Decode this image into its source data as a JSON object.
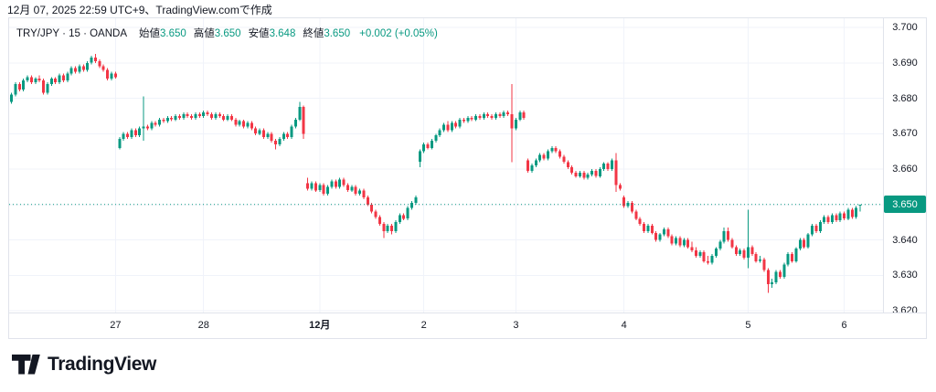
{
  "header": {
    "note": "12月 07, 2025 22:59 UTC+9、TradingView.comで作成"
  },
  "legend": {
    "symbol_title": "TRY/JPY · 15 · OANDA",
    "fields": [
      {
        "label": "始値",
        "value": "3.650"
      },
      {
        "label": "高値",
        "value": "3.650"
      },
      {
        "label": "安値",
        "value": "3.648"
      },
      {
        "label": "終値",
        "value": "3.650"
      }
    ],
    "change": "+0.002 (+0.05%)"
  },
  "footer": {
    "brand": "TradingView"
  },
  "colors": {
    "up": "#089981",
    "down": "#f23645",
    "grid": "#f0f3fa",
    "frame": "#e0e3eb",
    "text": "#131722",
    "badge_bg": "#089981",
    "badge_text": "#ffffff"
  },
  "chart_data": {
    "type": "candlestick",
    "symbol": "TRY/JPY",
    "interval": "15",
    "exchange": "OANDA",
    "last_ohlc": {
      "open": 3.65,
      "high": 3.65,
      "low": 3.648,
      "close": 3.65,
      "change": 0.002,
      "change_pct": 0.05
    },
    "current_price": 3.65,
    "current_price_label": "3.650",
    "grid": true,
    "y_axis": {
      "min": 3.62,
      "max": 3.7,
      "tick_step": 0.01,
      "labels": [
        "3.700",
        "3.690",
        "3.680",
        "3.670",
        "3.660",
        "3.650",
        "3.640",
        "3.630",
        "3.620"
      ]
    },
    "x_axis": {
      "ticks": [
        {
          "label": "27",
          "slot": 26,
          "bold": false
        },
        {
          "label": "28",
          "slot": 48,
          "bold": false
        },
        {
          "label": "12月",
          "slot": 77,
          "bold": true
        },
        {
          "label": "2",
          "slot": 103,
          "bold": false
        },
        {
          "label": "3",
          "slot": 126,
          "bold": false
        },
        {
          "label": "4",
          "slot": 153,
          "bold": false
        },
        {
          "label": "5",
          "slot": 184,
          "bold": false
        },
        {
          "label": "6",
          "slot": 208,
          "bold": false
        }
      ]
    },
    "candles": [
      [
        3.679,
        3.6815,
        3.6785,
        3.681
      ],
      [
        3.681,
        3.6845,
        3.6805,
        3.684
      ],
      [
        3.684,
        3.6845,
        3.682,
        3.6825
      ],
      [
        3.6825,
        3.6855,
        3.682,
        3.685
      ],
      [
        3.685,
        3.6865,
        3.6845,
        3.686
      ],
      [
        3.686,
        3.6865,
        3.684,
        3.6845
      ],
      [
        3.6845,
        3.686,
        3.684,
        3.6855
      ],
      [
        3.6855,
        3.6865,
        3.6845,
        3.685
      ],
      [
        3.685,
        3.6855,
        3.681,
        3.6815
      ],
      [
        3.6815,
        3.6845,
        3.681,
        3.684
      ],
      [
        3.684,
        3.686,
        3.6835,
        3.6855
      ],
      [
        3.6855,
        3.686,
        3.684,
        3.6845
      ],
      [
        3.6845,
        3.687,
        3.684,
        3.6865
      ],
      [
        3.6865,
        3.687,
        3.6845,
        3.685
      ],
      [
        3.685,
        3.6875,
        3.6845,
        3.687
      ],
      [
        3.687,
        3.689,
        3.6865,
        3.6885
      ],
      [
        3.6885,
        3.689,
        3.687,
        3.6875
      ],
      [
        3.6875,
        3.6895,
        3.687,
        3.689
      ],
      [
        3.689,
        3.6895,
        3.6875,
        3.688
      ],
      [
        3.688,
        3.6905,
        3.6875,
        3.69
      ],
      [
        3.69,
        3.692,
        3.6895,
        3.6915
      ],
      [
        3.6915,
        3.6925,
        3.69,
        3.6905
      ],
      [
        3.6905,
        3.691,
        3.6885,
        3.689
      ],
      [
        3.689,
        3.6895,
        3.6875,
        3.688
      ],
      [
        3.688,
        3.6885,
        3.685,
        3.6855
      ],
      [
        3.6855,
        3.6875,
        3.685,
        3.687
      ],
      [
        3.687,
        3.6875,
        3.6855,
        3.686
      ],
      [
        3.666,
        3.669,
        3.6655,
        3.6685
      ],
      [
        3.6685,
        3.6705,
        3.668,
        3.67
      ],
      [
        3.67,
        3.6705,
        3.6685,
        3.669
      ],
      [
        3.669,
        3.6715,
        3.6685,
        3.671
      ],
      [
        3.671,
        3.6715,
        3.669,
        3.6695
      ],
      [
        3.6695,
        3.672,
        3.669,
        3.6715
      ],
      [
        3.6715,
        3.6805,
        3.668,
        3.672
      ],
      [
        3.672,
        3.6725,
        3.671,
        3.6715
      ],
      [
        3.6715,
        3.6735,
        3.671,
        3.673
      ],
      [
        3.673,
        3.6735,
        3.672,
        3.6725
      ],
      [
        3.6725,
        3.6745,
        3.672,
        3.674
      ],
      [
        3.674,
        3.6745,
        3.673,
        3.6735
      ],
      [
        3.6735,
        3.675,
        3.673,
        3.6745
      ],
      [
        3.6745,
        3.675,
        3.6735,
        3.674
      ],
      [
        3.674,
        3.6755,
        3.6735,
        3.675
      ],
      [
        3.675,
        3.6755,
        3.674,
        3.6745
      ],
      [
        3.6745,
        3.676,
        3.674,
        3.6755
      ],
      [
        3.6755,
        3.676,
        3.6745,
        3.675
      ],
      [
        3.675,
        3.6755,
        3.674,
        3.6745
      ],
      [
        3.6745,
        3.676,
        3.674,
        3.6755
      ],
      [
        3.6755,
        3.676,
        3.6745,
        3.675
      ],
      [
        3.675,
        3.6765,
        3.6745,
        3.676
      ],
      [
        3.676,
        3.6765,
        3.675,
        3.6755
      ],
      [
        3.6755,
        3.676,
        3.674,
        3.6745
      ],
      [
        3.6745,
        3.676,
        3.674,
        3.6755
      ],
      [
        3.6755,
        3.676,
        3.6745,
        3.675
      ],
      [
        3.675,
        3.6755,
        3.6735,
        3.674
      ],
      [
        3.674,
        3.6755,
        3.6735,
        3.675
      ],
      [
        3.675,
        3.6755,
        3.6735,
        3.674
      ],
      [
        3.674,
        3.6745,
        3.672,
        3.6725
      ],
      [
        3.6725,
        3.674,
        3.672,
        3.6735
      ],
      [
        3.6735,
        3.674,
        3.6715,
        3.672
      ],
      [
        3.672,
        3.6735,
        3.6715,
        3.673
      ],
      [
        3.673,
        3.6735,
        3.671,
        3.6715
      ],
      [
        3.6715,
        3.672,
        3.6695,
        3.67
      ],
      [
        3.67,
        3.6715,
        3.6695,
        3.671
      ],
      [
        3.671,
        3.6715,
        3.6685,
        3.669
      ],
      [
        3.669,
        3.6705,
        3.6685,
        3.67
      ],
      [
        3.67,
        3.6705,
        3.6675,
        3.668
      ],
      [
        3.668,
        3.6685,
        3.6655,
        3.667
      ],
      [
        3.667,
        3.669,
        3.6665,
        3.6685
      ],
      [
        3.6685,
        3.6705,
        3.668,
        3.67
      ],
      [
        3.67,
        3.6705,
        3.6685,
        3.669
      ],
      [
        3.669,
        3.6725,
        3.6685,
        3.672
      ],
      [
        3.672,
        3.6745,
        3.6715,
        3.674
      ],
      [
        3.674,
        3.679,
        3.6735,
        3.6775
      ],
      [
        3.6775,
        3.678,
        3.6685,
        3.67
      ],
      [
        3.656,
        3.6575,
        3.654,
        3.6545
      ],
      [
        3.6545,
        3.6565,
        3.654,
        3.656
      ],
      [
        3.656,
        3.6565,
        3.6535,
        3.654
      ],
      [
        3.654,
        3.656,
        3.6535,
        3.6555
      ],
      [
        3.6555,
        3.656,
        3.6525,
        3.653
      ],
      [
        3.653,
        3.6555,
        3.6525,
        3.655
      ],
      [
        3.655,
        3.657,
        3.6545,
        3.6565
      ],
      [
        3.6565,
        3.657,
        3.6545,
        3.655
      ],
      [
        3.655,
        3.6575,
        3.6545,
        3.657
      ],
      [
        3.657,
        3.6575,
        3.655,
        3.6555
      ],
      [
        3.6555,
        3.656,
        3.6535,
        3.654
      ],
      [
        3.654,
        3.6555,
        3.6535,
        3.655
      ],
      [
        3.655,
        3.6555,
        3.6525,
        3.653
      ],
      [
        3.653,
        3.6545,
        3.6525,
        3.654
      ],
      [
        3.654,
        3.6545,
        3.6515,
        3.652
      ],
      [
        3.652,
        3.6525,
        3.6495,
        3.65
      ],
      [
        3.65,
        3.6505,
        3.6475,
        3.648
      ],
      [
        3.648,
        3.6485,
        3.646,
        3.6465
      ],
      [
        3.6465,
        3.647,
        3.644,
        3.6445
      ],
      [
        3.6445,
        3.645,
        3.6405,
        3.6425
      ],
      [
        3.6425,
        3.6445,
        3.642,
        3.644
      ],
      [
        3.644,
        3.6445,
        3.6415,
        3.6425
      ],
      [
        3.6425,
        3.6455,
        3.642,
        3.645
      ],
      [
        3.645,
        3.6475,
        3.6445,
        3.647
      ],
      [
        3.647,
        3.6475,
        3.6455,
        3.646
      ],
      [
        3.646,
        3.6495,
        3.6455,
        3.649
      ],
      [
        3.649,
        3.651,
        3.6485,
        3.6505
      ],
      [
        3.6505,
        3.6525,
        3.65,
        3.652
      ],
      [
        3.662,
        3.6655,
        3.6605,
        3.665
      ],
      [
        3.665,
        3.6675,
        3.6645,
        3.667
      ],
      [
        3.667,
        3.6675,
        3.6655,
        3.666
      ],
      [
        3.666,
        3.6685,
        3.6655,
        3.668
      ],
      [
        3.668,
        3.67,
        3.6675,
        3.6695
      ],
      [
        3.6695,
        3.6715,
        3.669,
        3.671
      ],
      [
        3.671,
        3.673,
        3.6705,
        3.6725
      ],
      [
        3.6725,
        3.6735,
        3.6705,
        3.671
      ],
      [
        3.671,
        3.6735,
        3.6705,
        3.673
      ],
      [
        3.673,
        3.6735,
        3.6715,
        3.672
      ],
      [
        3.672,
        3.6745,
        3.6715,
        3.674
      ],
      [
        3.674,
        3.6745,
        3.673,
        3.6735
      ],
      [
        3.6735,
        3.675,
        3.673,
        3.6745
      ],
      [
        3.6745,
        3.675,
        3.6735,
        3.674
      ],
      [
        3.674,
        3.6755,
        3.6735,
        3.675
      ],
      [
        3.675,
        3.6755,
        3.674,
        3.6745
      ],
      [
        3.6745,
        3.676,
        3.674,
        3.6755
      ],
      [
        3.6755,
        3.676,
        3.6745,
        3.675
      ],
      [
        3.675,
        3.6755,
        3.674,
        3.6745
      ],
      [
        3.6745,
        3.676,
        3.674,
        3.6755
      ],
      [
        3.6755,
        3.676,
        3.6745,
        3.675
      ],
      [
        3.675,
        3.6765,
        3.6745,
        3.676
      ],
      [
        3.676,
        3.6765,
        3.675,
        3.6755
      ],
      [
        3.6755,
        3.684,
        3.662,
        3.6715
      ],
      [
        3.6715,
        3.6745,
        3.671,
        3.674
      ],
      [
        3.674,
        3.6765,
        3.6735,
        3.676
      ],
      [
        3.676,
        3.6765,
        3.674,
        3.6745
      ],
      [
        3.6625,
        3.663,
        3.659,
        3.6595
      ],
      [
        3.6595,
        3.6615,
        3.659,
        3.661
      ],
      [
        3.661,
        3.663,
        3.6605,
        3.6625
      ],
      [
        3.6625,
        3.6645,
        3.662,
        3.664
      ],
      [
        3.664,
        3.6645,
        3.6625,
        3.663
      ],
      [
        3.663,
        3.6655,
        3.6625,
        3.665
      ],
      [
        3.665,
        3.6665,
        3.6645,
        3.666
      ],
      [
        3.666,
        3.6665,
        3.6645,
        3.665
      ],
      [
        3.665,
        3.6655,
        3.663,
        3.6635
      ],
      [
        3.6635,
        3.664,
        3.6615,
        3.662
      ],
      [
        3.662,
        3.6625,
        3.66,
        3.6605
      ],
      [
        3.6605,
        3.661,
        3.6585,
        3.659
      ],
      [
        3.659,
        3.6595,
        3.6575,
        3.658
      ],
      [
        3.658,
        3.6595,
        3.6575,
        3.659
      ],
      [
        3.659,
        3.6595,
        3.657,
        3.6575
      ],
      [
        3.6575,
        3.659,
        3.657,
        3.6585
      ],
      [
        3.6585,
        3.66,
        3.658,
        3.6595
      ],
      [
        3.6595,
        3.66,
        3.6575,
        3.658
      ],
      [
        3.658,
        3.6605,
        3.6575,
        3.66
      ],
      [
        3.66,
        3.662,
        3.6595,
        3.6615
      ],
      [
        3.6615,
        3.662,
        3.6595,
        3.66
      ],
      [
        3.66,
        3.663,
        3.6595,
        3.6625
      ],
      [
        3.6625,
        3.6645,
        3.6535,
        3.6555
      ],
      [
        3.6555,
        3.656,
        3.654,
        3.6545
      ],
      [
        3.652,
        3.6525,
        3.649,
        3.6495
      ],
      [
        3.6495,
        3.651,
        3.649,
        3.6505
      ],
      [
        3.6505,
        3.651,
        3.6475,
        3.648
      ],
      [
        3.648,
        3.6485,
        3.6455,
        3.646
      ],
      [
        3.646,
        3.6465,
        3.644,
        3.6445
      ],
      [
        3.6445,
        3.645,
        3.642,
        3.6425
      ],
      [
        3.6425,
        3.6445,
        3.642,
        3.644
      ],
      [
        3.644,
        3.6445,
        3.6415,
        3.642
      ],
      [
        3.642,
        3.6425,
        3.6395,
        3.64
      ],
      [
        3.64,
        3.642,
        3.6395,
        3.6415
      ],
      [
        3.6415,
        3.6435,
        3.641,
        3.643
      ],
      [
        3.643,
        3.6435,
        3.6405,
        3.641
      ],
      [
        3.641,
        3.6415,
        3.6385,
        3.639
      ],
      [
        3.639,
        3.641,
        3.6385,
        3.6405
      ],
      [
        3.6405,
        3.641,
        3.638,
        3.6385
      ],
      [
        3.6385,
        3.6405,
        3.638,
        3.64
      ],
      [
        3.64,
        3.6405,
        3.6375,
        3.638
      ],
      [
        3.638,
        3.6395,
        3.6365,
        3.637
      ],
      [
        3.637,
        3.638,
        3.635,
        3.6355
      ],
      [
        3.6355,
        3.637,
        3.635,
        3.6365
      ],
      [
        3.6365,
        3.637,
        3.6335,
        3.634
      ],
      [
        3.634,
        3.6355,
        3.633,
        3.6335
      ],
      [
        3.6335,
        3.636,
        3.633,
        3.6355
      ],
      [
        3.6355,
        3.638,
        3.635,
        3.6375
      ],
      [
        3.6375,
        3.64,
        3.637,
        3.6395
      ],
      [
        3.6395,
        3.6435,
        3.639,
        3.6425
      ],
      [
        3.6425,
        3.6435,
        3.6395,
        3.64
      ],
      [
        3.64,
        3.6405,
        3.6375,
        3.638
      ],
      [
        3.638,
        3.6385,
        3.6355,
        3.636
      ],
      [
        3.636,
        3.6375,
        3.6355,
        3.637
      ],
      [
        3.637,
        3.6375,
        3.6345,
        3.635
      ],
      [
        3.635,
        3.6485,
        3.632,
        3.638
      ],
      [
        3.638,
        3.6385,
        3.6355,
        3.636
      ],
      [
        3.636,
        3.6365,
        3.6335,
        3.634
      ],
      [
        3.634,
        3.6355,
        3.6335,
        3.6345
      ],
      [
        3.6345,
        3.635,
        3.631,
        3.6315
      ],
      [
        3.6315,
        3.632,
        3.625,
        3.6275
      ],
      [
        3.6275,
        3.629,
        3.6265,
        3.628
      ],
      [
        3.628,
        3.6315,
        3.6275,
        3.631
      ],
      [
        3.631,
        3.6315,
        3.629,
        3.6295
      ],
      [
        3.6295,
        3.6335,
        3.629,
        3.633
      ],
      [
        3.633,
        3.6365,
        3.6325,
        3.636
      ],
      [
        3.636,
        3.6365,
        3.6335,
        3.634
      ],
      [
        3.634,
        3.638,
        3.6335,
        3.6375
      ],
      [
        3.6375,
        3.6405,
        3.637,
        3.64
      ],
      [
        3.64,
        3.6405,
        3.6375,
        3.638
      ],
      [
        3.638,
        3.642,
        3.6375,
        3.6415
      ],
      [
        3.6415,
        3.6445,
        3.641,
        3.644
      ],
      [
        3.644,
        3.6445,
        3.642,
        3.6425
      ],
      [
        3.6425,
        3.6455,
        3.642,
        3.645
      ],
      [
        3.645,
        3.647,
        3.6445,
        3.6465
      ],
      [
        3.6465,
        3.647,
        3.6445,
        3.645
      ],
      [
        3.645,
        3.6475,
        3.6445,
        3.647
      ],
      [
        3.647,
        3.6475,
        3.645,
        3.6455
      ],
      [
        3.6455,
        3.648,
        3.645,
        3.6475
      ],
      [
        3.6475,
        3.648,
        3.6455,
        3.646
      ],
      [
        3.646,
        3.649,
        3.6455,
        3.6485
      ],
      [
        3.6485,
        3.649,
        3.646,
        3.6465
      ],
      [
        3.6465,
        3.6495,
        3.646,
        3.649
      ],
      [
        3.65,
        3.65,
        3.648,
        3.65
      ]
    ]
  }
}
